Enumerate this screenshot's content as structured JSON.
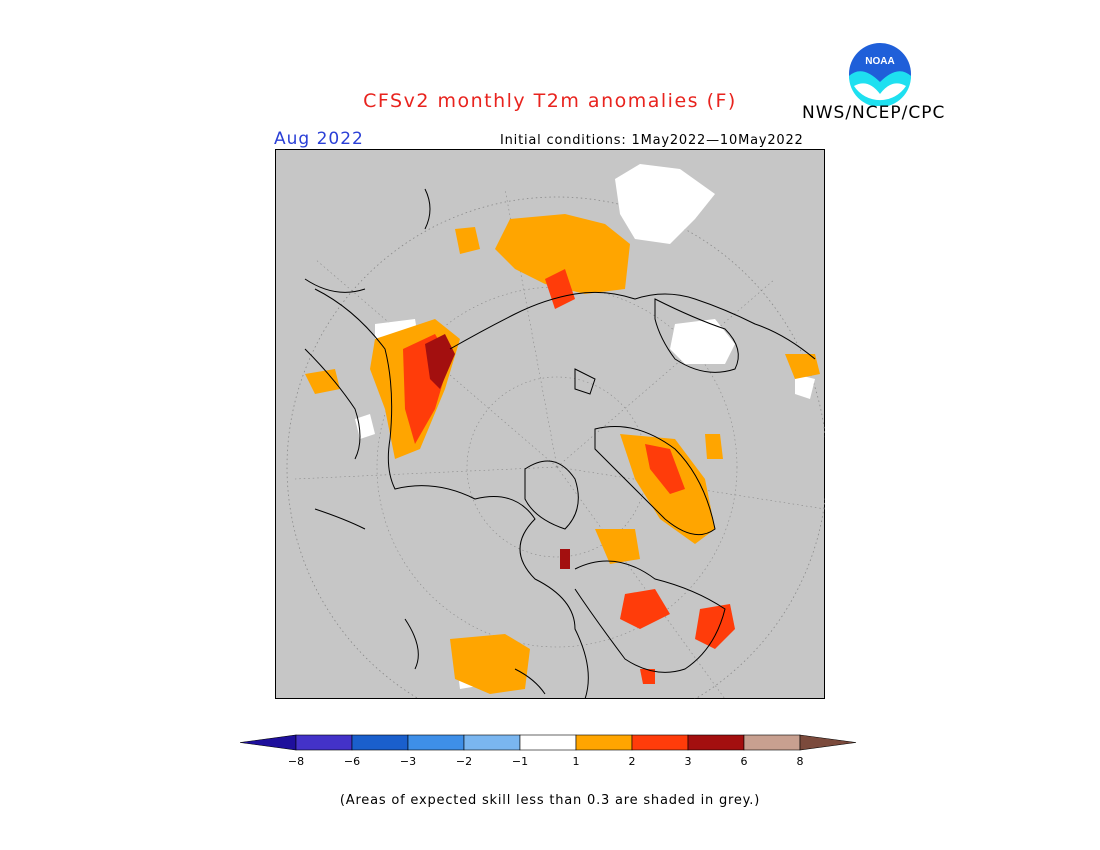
{
  "header": {
    "title": "CFSv2 monthly T2m anomalies (F)",
    "agency": "NWS/NCEP/CPC",
    "logo_text": "NOAA",
    "valid_month": "Aug 2022",
    "initial_conditions": "Initial conditions: 1May2022—10May2022"
  },
  "colors": {
    "skill_grey": "#c6c6c6",
    "title_red": "#e8231e",
    "month_blue": "#2a3fd6"
  },
  "colorbar": {
    "bins": [
      {
        "color": "#1e0f9c"
      },
      {
        "color": "#4332c8"
      },
      {
        "color": "#1a5fcc"
      },
      {
        "color": "#3e8fe8"
      },
      {
        "color": "#7ab6f0"
      },
      {
        "color": "#ffffff"
      },
      {
        "color": "#ffa500"
      },
      {
        "color": "#ff3c0a"
      },
      {
        "color": "#a30f0f"
      },
      {
        "color": "#c8a090"
      },
      {
        "color": "#7b4a3c"
      }
    ],
    "tick_labels": [
      "−8",
      "−6",
      "−3",
      "−2",
      "−1",
      "1",
      "2",
      "3",
      "6",
      "8"
    ]
  },
  "caption": "(Areas of expected skill less than 0.3 are shaded in grey.)"
}
